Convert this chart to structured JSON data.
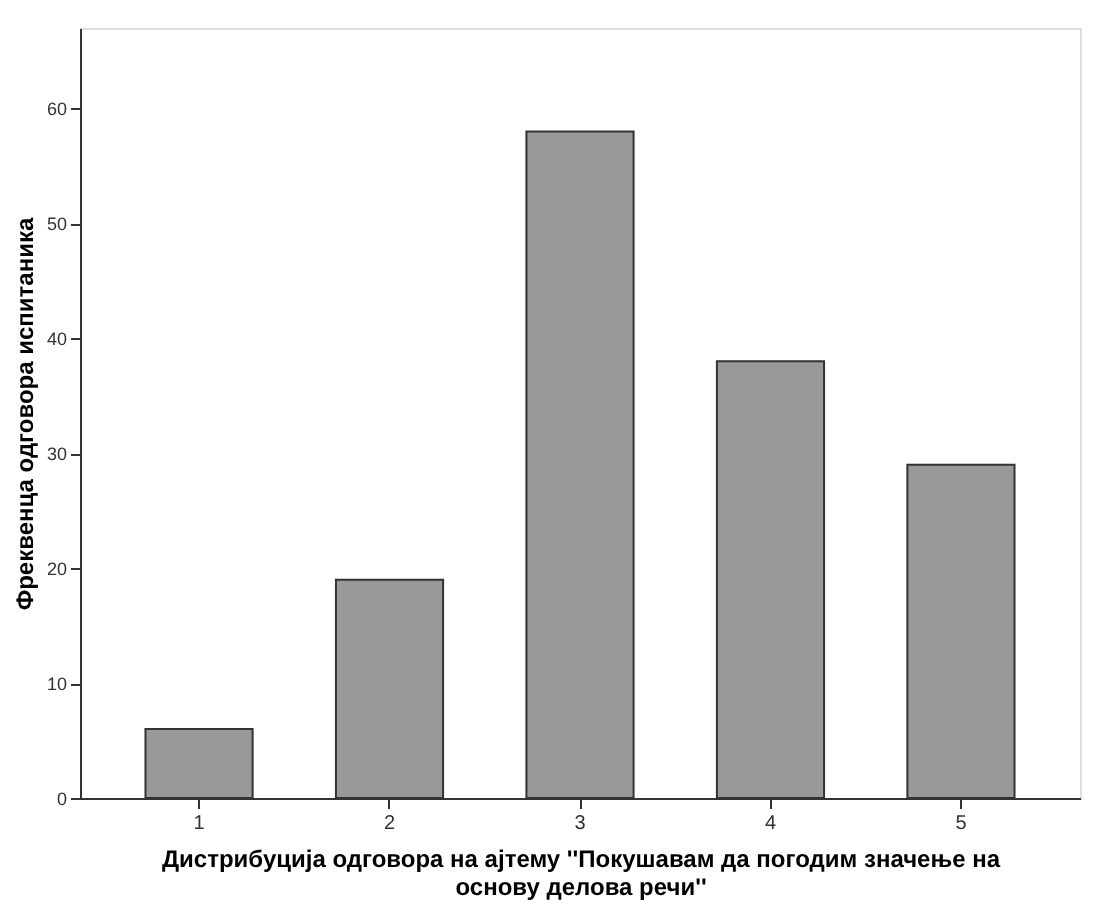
{
  "chart_data": {
    "type": "bar",
    "xlabel": "Дистрибуција одговора на ајтему ''Покушавам да погодим значење на основу делова речи''",
    "ylabel": "Фреквенца одговора испитаника",
    "categories": [
      "1",
      "2",
      "3",
      "4",
      "5"
    ],
    "values": [
      6,
      19,
      58,
      38,
      29
    ],
    "color": "#999999",
    "ylim": [
      0,
      67
    ],
    "yticks": [
      0,
      10,
      20,
      30,
      40,
      50,
      60
    ],
    "grid": false
  }
}
